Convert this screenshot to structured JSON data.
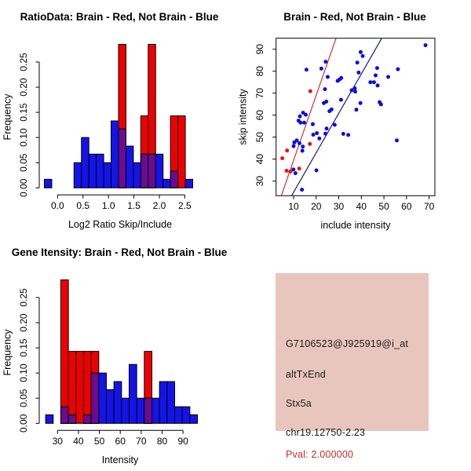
{
  "page": {
    "background": "#ffffff"
  },
  "chart_data": [
    {
      "type": "bar",
      "subtype": "histogram-overlaid",
      "panel": "top-left",
      "title": "RatioData: Brain - Red, Not Brain - Blue",
      "xlabel": "Log2 Ratio Skip/Include",
      "ylabel": "Frequency",
      "x_tick_labels": [
        "0.0",
        "0.5",
        "1.0",
        "1.5",
        "2.0",
        "2.5"
      ],
      "x_tick_values": [
        0,
        0.5,
        1.0,
        1.5,
        2.0,
        2.5
      ],
      "y_tick_labels": [
        "0.00",
        "0.05",
        "0.10",
        "0.15",
        "0.20",
        "0.25"
      ],
      "y_tick_values": [
        0,
        0.05,
        0.1,
        0.15,
        0.2,
        0.25
      ],
      "ylim": [
        0,
        0.285
      ],
      "bin_start": -0.26,
      "bin_width": 0.1458,
      "legend_note": "Brain - Red, Not Brain - Blue",
      "series": [
        {
          "name": "Brain (red)",
          "color": "#ee0000",
          "values": [
            0,
            0,
            0,
            0,
            0,
            0,
            0,
            0,
            0,
            0,
            0.285,
            0,
            0,
            0.143,
            0.285,
            0,
            0,
            0.143,
            0.143,
            0
          ]
        },
        {
          "name": "Not Brain (blue)",
          "color": "#1414e8",
          "values": [
            0.017,
            0,
            0,
            0,
            0.05,
            0.1,
            0.067,
            0.067,
            0.05,
            0.133,
            0.117,
            0.083,
            0.05,
            0.067,
            0.067,
            0.067,
            0.017,
            0.033,
            0,
            0.017
          ]
        }
      ],
      "overlap_color": "#6a0b91"
    },
    {
      "type": "scatter",
      "panel": "top-right",
      "title": "Brain - Red, Not Brain - Blue",
      "xlabel": "include intensity",
      "ylabel": "skip intensity",
      "x_tick_labels": [
        "10",
        "20",
        "30",
        "40",
        "50",
        "60",
        "70"
      ],
      "x_tick_values": [
        10,
        20,
        30,
        40,
        50,
        60,
        70
      ],
      "y_tick_labels": [
        "30",
        "40",
        "50",
        "60",
        "70",
        "80",
        "90"
      ],
      "y_tick_values": [
        30,
        40,
        50,
        60,
        70,
        80,
        90
      ],
      "xlim": [
        2.3,
        72
      ],
      "ylim": [
        22.2,
        95.3
      ],
      "series": [
        {
          "name": "Not Brain (blue)",
          "color": "#0d0ddf",
          "points": [
            [
              68.4,
              91.8
            ],
            [
              39.7,
              88.7
            ],
            [
              40.6,
              86.9
            ],
            [
              38.2,
              83.9
            ],
            [
              24.2,
              84.3
            ],
            [
              25.1,
              77.4
            ],
            [
              22.3,
              81.2
            ],
            [
              15.7,
              80.7
            ],
            [
              56.2,
              80.9
            ],
            [
              47.0,
              81.4
            ],
            [
              38.8,
              79.4
            ],
            [
              46.3,
              78.1
            ],
            [
              51.9,
              77.4
            ],
            [
              29.5,
              75.6
            ],
            [
              30.3,
              76.2
            ],
            [
              31.1,
              76.9
            ],
            [
              44.0,
              75.0
            ],
            [
              45.6,
              75.0
            ],
            [
              47.2,
              73.5
            ],
            [
              23.9,
              71.8
            ],
            [
              35.7,
              71.3
            ],
            [
              37.1,
              72.2
            ],
            [
              37.3,
              70.7
            ],
            [
              31.0,
              67.0
            ],
            [
              23.4,
              65.5
            ],
            [
              24.5,
              66.2
            ],
            [
              39.6,
              65.5
            ],
            [
              48.1,
              65.9
            ],
            [
              48.7,
              64.9
            ],
            [
              25.9,
              61.8
            ],
            [
              26.8,
              62.6
            ],
            [
              37.8,
              62.5
            ],
            [
              14.2,
              61.1
            ],
            [
              15.4,
              60.2
            ],
            [
              12.8,
              59.5
            ],
            [
              12.2,
              57.5
            ],
            [
              13.1,
              56.6
            ],
            [
              14.7,
              56.6
            ],
            [
              18.5,
              55.9
            ],
            [
              24.6,
              53.9
            ],
            [
              28.2,
              55.6
            ],
            [
              24.1,
              51.6
            ],
            [
              20.3,
              51.8
            ],
            [
              18.7,
              51.1
            ],
            [
              21.4,
              49.4
            ],
            [
              32.0,
              51.5
            ],
            [
              34.2,
              51.0
            ],
            [
              10.3,
              47.6
            ],
            [
              11.4,
              48.5
            ],
            [
              12.6,
              47.2
            ],
            [
              14.1,
              45.7
            ],
            [
              10.0,
              45.9
            ],
            [
              13.9,
              43.8
            ],
            [
              55.7,
              48.5
            ],
            [
              9.9,
              35.3
            ],
            [
              10.8,
              33.6
            ],
            [
              20.1,
              34.9
            ],
            [
              13.7,
              26.1
            ]
          ]
        },
        {
          "name": "Brain (red)",
          "color": "#ee1111",
          "points": [
            [
              17.4,
              70.9
            ],
            [
              17.2,
              46.9
            ],
            [
              7.1,
              43.9
            ],
            [
              5.0,
              40.4
            ],
            [
              6.9,
              34.7
            ],
            [
              8.6,
              34.3
            ],
            [
              12.5,
              35.7
            ]
          ]
        }
      ],
      "lines": [
        {
          "name": "brain-fit-line",
          "color": "#c83232",
          "x1": 4.6,
          "y1": 23.5,
          "x2": 28.9,
          "y2": 95.3
        },
        {
          "name": "notbrain-fit-line",
          "color": "#16168c",
          "x1": 9.2,
          "y1": 23.5,
          "x2": 49.2,
          "y2": 95.3
        }
      ]
    },
    {
      "type": "bar",
      "subtype": "histogram-overlaid",
      "panel": "bottom-left",
      "title": "Gene Itensity: Brain - Red, Not Brain - Blue",
      "xlabel": "Intensity",
      "ylabel": "Frequency",
      "x_tick_labels": [
        "30",
        "40",
        "50",
        "60",
        "70",
        "80",
        "90"
      ],
      "x_tick_values": [
        30,
        40,
        50,
        60,
        70,
        80,
        90
      ],
      "y_tick_labels": [
        "0.00",
        "0.05",
        "0.10",
        "0.15",
        "0.20",
        "0.25"
      ],
      "y_tick_values": [
        0,
        0.05,
        0.1,
        0.15,
        0.2,
        0.25
      ],
      "ylim": [
        0,
        0.285
      ],
      "bin_start": 24.3,
      "bin_width": 3.63,
      "legend_note": "Brain - Red, Not Brain - Blue",
      "series": [
        {
          "name": "Brain (red)",
          "color": "#ee0000",
          "values": [
            0,
            0,
            0.285,
            0.143,
            0.143,
            0.143,
            0.143,
            0,
            0,
            0,
            0,
            0,
            0,
            0.143,
            0,
            0,
            0,
            0,
            0,
            0
          ]
        },
        {
          "name": "Not Brain (blue)",
          "color": "#1414e8",
          "values": [
            0.017,
            0,
            0.033,
            0.017,
            0,
            0.017,
            0.1,
            0.1,
            0.067,
            0.083,
            0.05,
            0.117,
            0.05,
            0.05,
            0.05,
            0.083,
            0.083,
            0.033,
            0.033,
            0.017
          ]
        }
      ],
      "overlap_color": "#6a0b91"
    }
  ],
  "info_box": {
    "background": "#e9c6bd",
    "lines": [
      {
        "text": "G7106523@J925919@i_at",
        "color": "#1a1a1a"
      },
      {
        "text": "altTxEnd",
        "color": "#1a1a1a"
      },
      {
        "text": "Stx5a",
        "color": "#1a1a1a"
      },
      {
        "text": "chr19.12750-2.23",
        "color": "#1a1a1a"
      },
      {
        "text": "Pval: 2.000000",
        "color": "#c62b2b"
      }
    ]
  }
}
